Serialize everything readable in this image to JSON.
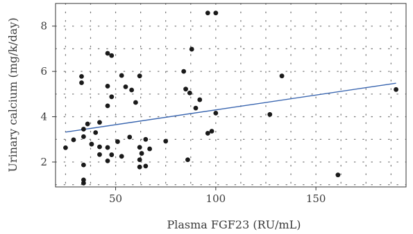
{
  "chart_data": {
    "type": "scatter",
    "xlabel": "Plasma FGF23 (RU/mL)",
    "ylabel": "Urinary calcium (mg/k/day)",
    "xlim": [
      20,
      195
    ],
    "ylim": [
      0.9,
      9.0
    ],
    "x_ticks": [
      50,
      100,
      150
    ],
    "y_ticks": [
      2,
      4,
      6,
      8
    ],
    "x_tick_labels": [
      "50",
      "100",
      "150"
    ],
    "y_tick_labels": [
      "2",
      "4",
      "6",
      "8"
    ],
    "grid": true,
    "grid_style": "dotted",
    "x_grid": [
      25,
      37.5,
      50,
      62.5,
      75,
      87.5,
      100,
      112.5,
      125,
      137.5,
      150,
      162.5,
      175,
      187.5
    ],
    "y_grid": [
      1,
      2,
      3,
      4,
      5,
      6,
      7,
      8
    ],
    "colors": {
      "points": "#1a1a1a",
      "fit_line": "#3a66b0",
      "frame": "#333333",
      "grid": "#7a7a7a"
    },
    "fit_line": {
      "x": [
        25,
        190
      ],
      "y": [
        3.32,
        5.48
      ]
    },
    "points": [
      {
        "x": 25,
        "y": 2.63
      },
      {
        "x": 29,
        "y": 2.98
      },
      {
        "x": 33,
        "y": 5.78
      },
      {
        "x": 33,
        "y": 5.5
      },
      {
        "x": 34,
        "y": 3.45
      },
      {
        "x": 34,
        "y": 3.12
      },
      {
        "x": 34,
        "y": 1.87
      },
      {
        "x": 34,
        "y": 1.21
      },
      {
        "x": 34,
        "y": 1.07
      },
      {
        "x": 36,
        "y": 3.68
      },
      {
        "x": 38,
        "y": 2.79
      },
      {
        "x": 40,
        "y": 3.3
      },
      {
        "x": 42,
        "y": 3.75
      },
      {
        "x": 42,
        "y": 2.67
      },
      {
        "x": 42,
        "y": 2.33
      },
      {
        "x": 46,
        "y": 6.8
      },
      {
        "x": 46,
        "y": 5.35
      },
      {
        "x": 46,
        "y": 4.48
      },
      {
        "x": 46,
        "y": 2.64
      },
      {
        "x": 46,
        "y": 2.05
      },
      {
        "x": 48,
        "y": 6.7
      },
      {
        "x": 48,
        "y": 4.88
      },
      {
        "x": 48,
        "y": 2.32
      },
      {
        "x": 51,
        "y": 2.9
      },
      {
        "x": 53,
        "y": 5.82
      },
      {
        "x": 53,
        "y": 2.25
      },
      {
        "x": 55,
        "y": 5.32
      },
      {
        "x": 57,
        "y": 3.1
      },
      {
        "x": 58,
        "y": 5.18
      },
      {
        "x": 60,
        "y": 4.63
      },
      {
        "x": 62,
        "y": 5.8
      },
      {
        "x": 62,
        "y": 2.65
      },
      {
        "x": 62,
        "y": 2.1
      },
      {
        "x": 62,
        "y": 1.78
      },
      {
        "x": 63,
        "y": 2.38
      },
      {
        "x": 65,
        "y": 3.0
      },
      {
        "x": 65,
        "y": 1.82
      },
      {
        "x": 67,
        "y": 2.58
      },
      {
        "x": 75,
        "y": 2.92
      },
      {
        "x": 84,
        "y": 6.0
      },
      {
        "x": 85,
        "y": 5.22
      },
      {
        "x": 86,
        "y": 2.1
      },
      {
        "x": 87,
        "y": 5.05
      },
      {
        "x": 88,
        "y": 6.98
      },
      {
        "x": 90,
        "y": 4.38
      },
      {
        "x": 92,
        "y": 4.75
      },
      {
        "x": 96,
        "y": 8.58
      },
      {
        "x": 96,
        "y": 3.27
      },
      {
        "x": 98,
        "y": 3.36
      },
      {
        "x": 100,
        "y": 8.58
      },
      {
        "x": 100,
        "y": 4.16
      },
      {
        "x": 127,
        "y": 4.1
      },
      {
        "x": 133,
        "y": 5.8
      },
      {
        "x": 161,
        "y": 1.43
      },
      {
        "x": 190,
        "y": 5.2
      }
    ]
  }
}
